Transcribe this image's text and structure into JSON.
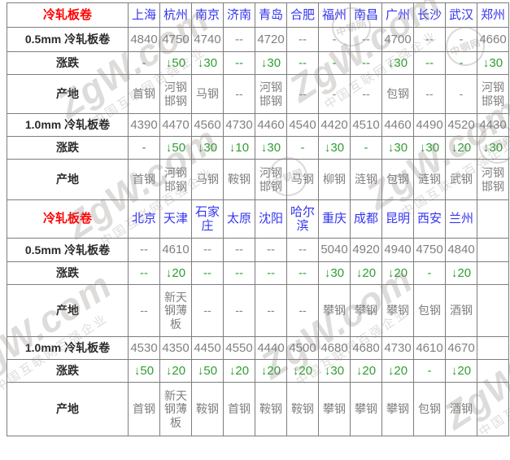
{
  "watermark": {
    "brand": "ZgW.com",
    "slogan": "中国互联网百强企业",
    "stamp": "中钢网"
  },
  "sections": [
    {
      "corner_label": "冷轧板卷",
      "cities": [
        "上海",
        "杭州",
        "南京",
        "济南",
        "青岛",
        "合肥",
        "福州",
        "南昌",
        "广州",
        "长沙",
        "武汉",
        "郑州"
      ],
      "rows": [
        {
          "label": "0.5mm 冷轧板卷",
          "kind": "price",
          "values": [
            "4840",
            "4750",
            "4740",
            "--",
            "4720",
            "--",
            "-",
            "--",
            "4700",
            "--",
            "-",
            "4660"
          ]
        },
        {
          "label": "涨跌",
          "kind": "change",
          "values": [
            "-",
            "↓50",
            "↓30",
            "--",
            "↓30",
            "--",
            "-",
            "--",
            "↓30",
            "--",
            "-",
            "↓30"
          ]
        },
        {
          "label": "产地",
          "kind": "origin",
          "values": [
            "首钢",
            "河钢邯钢",
            "马钢",
            "--",
            "河钢邯钢",
            "--",
            "-",
            "--",
            "包钢",
            "--",
            "-",
            "河钢邯钢"
          ]
        },
        {
          "label": "1.0mm 冷轧板卷",
          "kind": "price",
          "values": [
            "4390",
            "4470",
            "4560",
            "4730",
            "4460",
            "4540",
            "4420",
            "4510",
            "4460",
            "4490",
            "4520",
            "4430"
          ]
        },
        {
          "label": "涨跌",
          "kind": "change",
          "values": [
            "-",
            "↓50",
            "↓30",
            "↓10",
            "↓30",
            "-",
            "↓30",
            "-",
            "↓30",
            "↓30",
            "↓20",
            "↓30"
          ]
        },
        {
          "label": "产地",
          "kind": "origin",
          "values": [
            "首钢",
            "河钢邯钢",
            "马钢",
            "鞍钢",
            "河钢邯钢",
            "马钢",
            "柳钢",
            "涟钢",
            "包钢",
            "涟钢",
            "武钢",
            "河钢邯钢"
          ]
        }
      ]
    },
    {
      "corner_label": "冷轧板卷",
      "cities": [
        "北京",
        "天津",
        "石家庄",
        "太原",
        "沈阳",
        "哈尔滨",
        "重庆",
        "成都",
        "昆明",
        "西安",
        "兰州",
        ""
      ],
      "rows": [
        {
          "label": "0.5mm 冷轧板卷",
          "kind": "price",
          "values": [
            "--",
            "4610",
            "--",
            "--",
            "--",
            "--",
            "5040",
            "4920",
            "4940",
            "4750",
            "4840",
            ""
          ]
        },
        {
          "label": "涨跌",
          "kind": "change",
          "values": [
            "--",
            "↓20",
            "--",
            "--",
            "--",
            "--",
            "↓30",
            "↓20",
            "↓20",
            "-",
            "↓20",
            ""
          ]
        },
        {
          "label": "产地",
          "kind": "origin",
          "values": [
            "--",
            "新天钢薄板",
            "--",
            "--",
            "--",
            "--",
            "攀钢",
            "攀钢",
            "攀钢",
            "包钢",
            "酒钢",
            ""
          ]
        },
        {
          "label": "1.0mm 冷轧板卷",
          "kind": "price",
          "values": [
            "4530",
            "4350",
            "4450",
            "4550",
            "4440",
            "4500",
            "4680",
            "4680",
            "4730",
            "4610",
            "4670",
            ""
          ]
        },
        {
          "label": "涨跌",
          "kind": "change",
          "values": [
            "↓50",
            "↓20",
            "↓50",
            "↓20",
            "↓20",
            "↓20",
            "↓30",
            "↓20",
            "↓20",
            "-",
            "↓20",
            ""
          ]
        },
        {
          "label": "产地",
          "kind": "origin",
          "values": [
            "首钢",
            "新天钢薄板",
            "鞍钢",
            "首钢",
            "鞍钢",
            "鞍钢",
            "攀钢",
            "攀钢",
            "攀钢",
            "包钢",
            "酒钢",
            ""
          ]
        }
      ]
    }
  ],
  "colors": {
    "header_red": "#ff0000",
    "city_blue": "#3434f0",
    "value_gray": "#808080",
    "change_green": "#2f9e2f",
    "border_gray": "#7d7d7d"
  }
}
